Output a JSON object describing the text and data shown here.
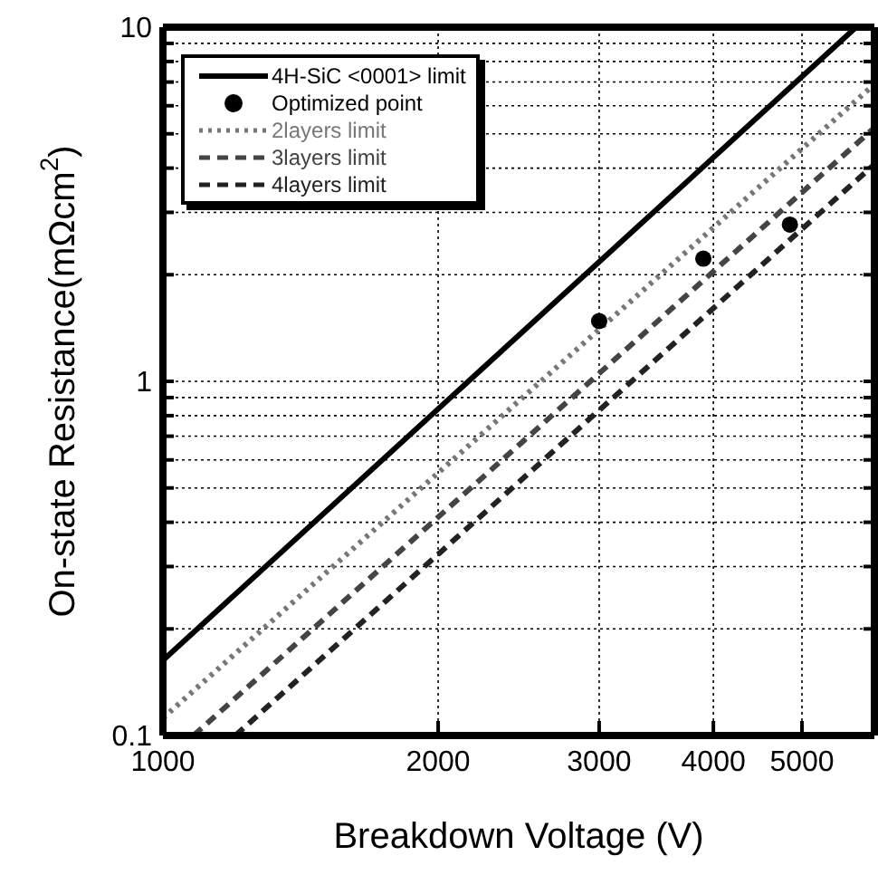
{
  "chart_data": {
    "type": "line",
    "xlabel": "Breakdown Voltage (V)",
    "ylabel": "On-state Resistance(mΩcm$^{2}$)",
    "log": "xy",
    "grid": true,
    "legend": "top left",
    "xlim": [
      1000,
      6000
    ],
    "xticks": [
      1000,
      2000,
      3000,
      4000,
      5000
    ],
    "ylim": [
      0.1,
      10
    ],
    "yticks": [
      0.1,
      {
        "value": 0.2,
        "label": null
      },
      {
        "value": 0.3,
        "label": null
      },
      {
        "value": 0.4,
        "label": null
      },
      {
        "value": 0.5,
        "label": null
      },
      {
        "value": 0.6,
        "label": null
      },
      {
        "value": 0.7,
        "label": null
      },
      {
        "value": 0.8,
        "label": null
      },
      {
        "value": 0.9,
        "label": null
      },
      1,
      {
        "value": 2,
        "label": null
      },
      {
        "value": 3,
        "label": null
      },
      {
        "value": 4,
        "label": null
      },
      {
        "value": 5,
        "label": null
      },
      {
        "value": 6,
        "label": null
      },
      {
        "value": 7,
        "label": null
      },
      {
        "value": 8,
        "label": null
      },
      {
        "value": 9,
        "label": null
      },
      10
    ],
    "series": [
      {
        "name": "4H-SiC <0001> limit",
        "type": "line",
        "color": "#000000",
        "line_style": "solid",
        "marker": "none",
        "x": [
          1000,
          5730
        ],
        "values": [
          0.163,
          10
        ]
      },
      {
        "name": "Optimized point",
        "type": "scatter",
        "color": "#000000",
        "marker": "circle",
        "x": [
          3000,
          3900,
          4850
        ],
        "values": [
          1.48,
          2.22,
          2.77
        ]
      },
      {
        "name": "2layers limit",
        "type": "line",
        "color": "#777777",
        "line_style": "dotted",
        "marker": "none",
        "x": [
          1000,
          6000
        ],
        "values": [
          0.112,
          6.9
        ]
      },
      {
        "name": "3layers limit",
        "type": "line",
        "color": "#444444",
        "line_style": "dashed",
        "marker": "none",
        "x": [
          1080,
          6000
        ],
        "values": [
          0.1,
          5.2
        ]
      },
      {
        "name": "4layers limit",
        "type": "line",
        "color": "#222222",
        "line_style": "dashed",
        "marker": "none",
        "x": [
          1200,
          6000
        ],
        "values": [
          0.1,
          4.1
        ]
      }
    ]
  }
}
